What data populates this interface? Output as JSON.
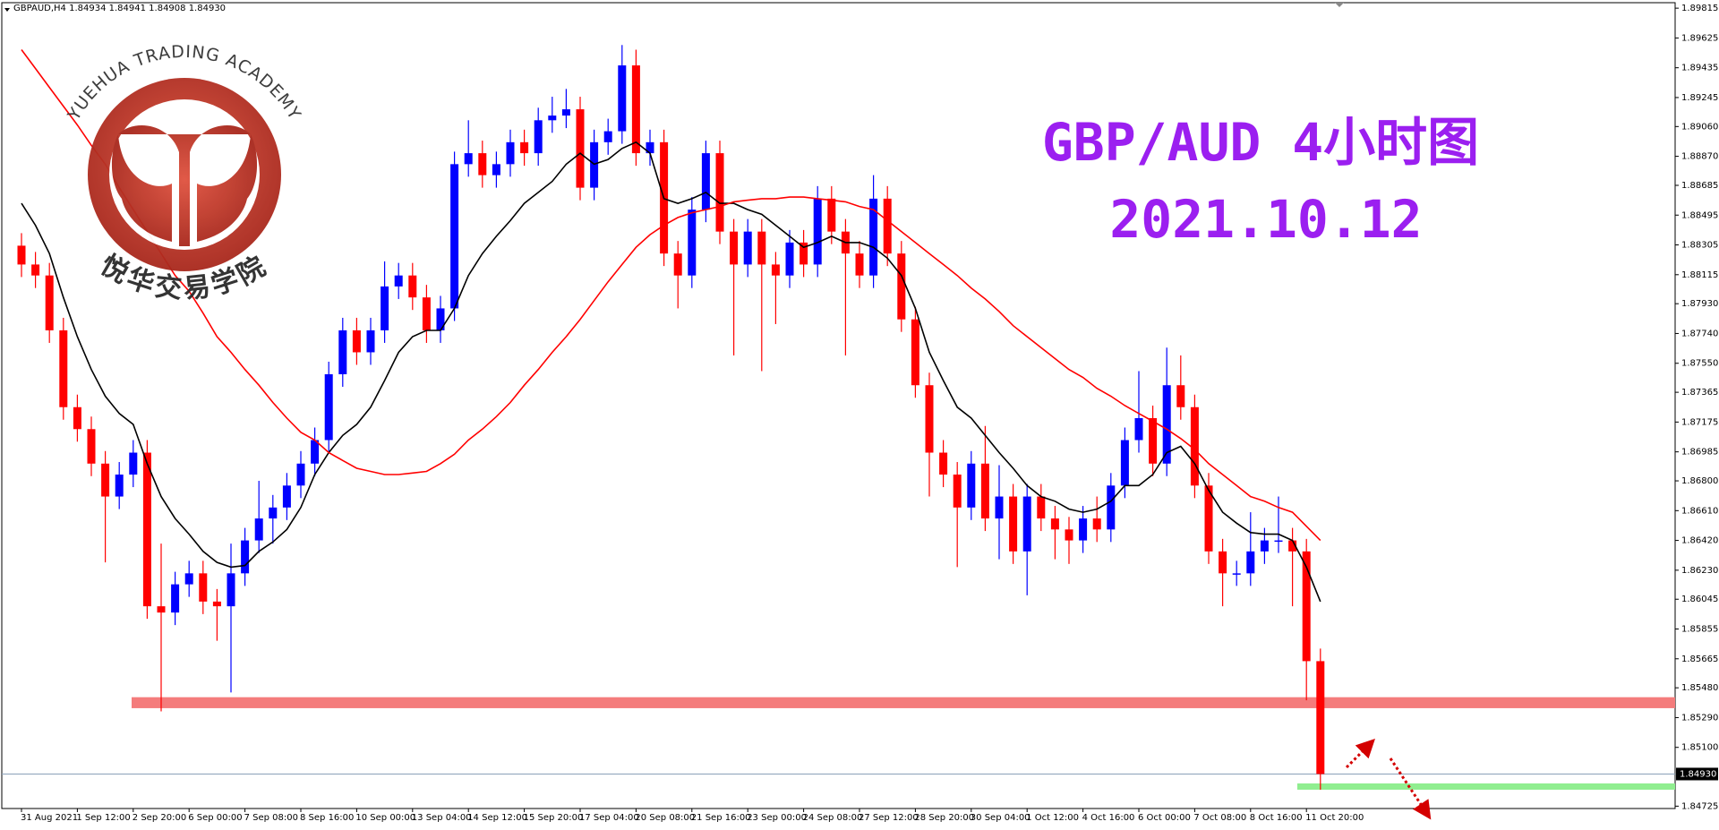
{
  "header": "GBPAUD,H4 1.84934 1.84941 1.84908 1.84930",
  "logo": {
    "text_en": "YUEHUA TRADING ACADEMY",
    "text_cn": "悦华交易学院"
  },
  "chart_data": {
    "type": "candlestick",
    "title": "GBP/AUD 4小时图",
    "subtitle": "2021.10.12",
    "categories": [
      "31 Aug 2021",
      null,
      null,
      null,
      "1 Sep 12:00",
      null,
      null,
      null,
      "2 Sep 20:00",
      null,
      null,
      null,
      "6 Sep 00:00",
      null,
      null,
      null,
      "7 Sep 08:00",
      null,
      null,
      null,
      "8 Sep 16:00",
      null,
      null,
      null,
      "10 Sep 00:00",
      null,
      null,
      null,
      "13 Sep 04:00",
      null,
      null,
      null,
      "14 Sep 12:00",
      null,
      null,
      null,
      "15 Sep 20:00",
      null,
      null,
      null,
      "17 Sep 04:00",
      null,
      null,
      null,
      "20 Sep 08:00",
      null,
      null,
      null,
      "21 Sep 16:00",
      null,
      null,
      null,
      "23 Sep 00:00",
      null,
      null,
      null,
      "24 Sep 08:00",
      null,
      null,
      null,
      "27 Sep 12:00",
      null,
      null,
      null,
      "28 Sep 20:00",
      null,
      null,
      null,
      "30 Sep 04:00",
      null,
      null,
      null,
      "1 Oct 12:00",
      null,
      null,
      null,
      "4 Oct 16:00",
      null,
      null,
      null,
      "6 Oct 00:00",
      null,
      null,
      null,
      "7 Oct 08:00",
      null,
      null,
      null,
      "8 Oct 16:00",
      null,
      null,
      null,
      "11 Oct 20:00",
      null
    ],
    "open": [
      1.883,
      1.8818,
      1.8811,
      1.8776,
      1.8727,
      1.8713,
      1.8691,
      1.867,
      1.8684,
      1.8698,
      1.86,
      1.8596,
      1.8614,
      1.8621,
      1.8603,
      1.86,
      1.8621,
      1.8642,
      1.8656,
      1.8663,
      1.8677,
      1.8691,
      1.8706,
      1.8748,
      1.8776,
      1.8762,
      1.8776,
      1.8804,
      1.8811,
      1.8797,
      1.8776,
      1.879,
      1.8882,
      1.8889,
      1.8875,
      1.8882,
      1.8896,
      1.8889,
      1.891,
      1.8913,
      1.8917,
      1.8867,
      1.8896,
      1.8903,
      1.8945,
      1.8889,
      1.8896,
      1.8825,
      1.8811,
      1.8853,
      1.8889,
      1.8839,
      1.8818,
      1.8839,
      1.8818,
      1.8811,
      1.8832,
      1.8818,
      1.886,
      1.8839,
      1.8825,
      1.8811,
      1.886,
      1.8825,
      1.8783,
      1.8741,
      1.8698,
      1.8684,
      1.8663,
      1.8691,
      1.8656,
      1.867,
      1.8635,
      1.867,
      1.8656,
      1.8649,
      1.8642,
      1.8656,
      1.8649,
      1.8677,
      1.8706,
      1.872,
      1.8691,
      1.8741,
      1.8727,
      1.8677,
      1.8635,
      1.8621,
      1.8621,
      1.8635,
      1.8642,
      1.8642,
      1.8635,
      1.8565
    ],
    "high": [
      1.8838,
      1.8826,
      1.8819,
      1.8784,
      1.8735,
      1.8721,
      1.8699,
      1.8692,
      1.8706,
      1.8706,
      1.864,
      1.8622,
      1.8629,
      1.8629,
      1.8611,
      1.864,
      1.865,
      1.868,
      1.8671,
      1.8685,
      1.8699,
      1.8714,
      1.8756,
      1.8784,
      1.8784,
      1.8784,
      1.882,
      1.8819,
      1.8819,
      1.8805,
      1.8798,
      1.889,
      1.891,
      1.8897,
      1.889,
      1.8904,
      1.8904,
      1.8918,
      1.8925,
      1.893,
      1.8925,
      1.8904,
      1.8911,
      1.8958,
      1.8955,
      1.8904,
      1.8904,
      1.8833,
      1.8861,
      1.8897,
      1.8897,
      1.8847,
      1.8847,
      1.8847,
      1.8826,
      1.884,
      1.884,
      1.8868,
      1.8868,
      1.8847,
      1.8833,
      1.8875,
      1.8868,
      1.8833,
      1.8791,
      1.8749,
      1.8706,
      1.8692,
      1.8699,
      1.8715,
      1.869,
      1.8678,
      1.8678,
      1.8678,
      1.8664,
      1.8657,
      1.8664,
      1.867,
      1.8685,
      1.8714,
      1.875,
      1.8728,
      1.8765,
      1.876,
      1.8735,
      1.8685,
      1.8643,
      1.8629,
      1.866,
      1.865,
      1.867,
      1.865,
      1.8643,
      1.8573
    ],
    "low": [
      1.881,
      1.8803,
      1.8768,
      1.8719,
      1.8705,
      1.8683,
      1.8628,
      1.8662,
      1.8676,
      1.8592,
      1.8533,
      1.8588,
      1.8606,
      1.8595,
      1.8578,
      1.8545,
      1.8613,
      1.8634,
      1.864,
      1.8655,
      1.8669,
      1.8683,
      1.8698,
      1.874,
      1.8754,
      1.8754,
      1.8768,
      1.8796,
      1.8789,
      1.8768,
      1.8768,
      1.8782,
      1.8874,
      1.8867,
      1.8867,
      1.8874,
      1.8881,
      1.8881,
      1.8902,
      1.8905,
      1.8859,
      1.8859,
      1.8888,
      1.8895,
      1.8881,
      1.8881,
      1.8817,
      1.879,
      1.8803,
      1.8845,
      1.8831,
      1.876,
      1.881,
      1.875,
      1.878,
      1.8803,
      1.881,
      1.881,
      1.8831,
      1.876,
      1.8803,
      1.8803,
      1.8817,
      1.8775,
      1.8733,
      1.867,
      1.8676,
      1.8625,
      1.8655,
      1.8648,
      1.863,
      1.8627,
      1.8607,
      1.8648,
      1.863,
      1.8627,
      1.8634,
      1.8641,
      1.8641,
      1.8669,
      1.8698,
      1.8683,
      1.8683,
      1.8719,
      1.8669,
      1.8627,
      1.86,
      1.8613,
      1.8613,
      1.8627,
      1.8634,
      1.86,
      1.854,
      1.8483
    ],
    "close": [
      1.8818,
      1.8811,
      1.8776,
      1.8727,
      1.8713,
      1.8691,
      1.867,
      1.8684,
      1.8698,
      1.86,
      1.8596,
      1.8614,
      1.8621,
      1.8603,
      1.86,
      1.8621,
      1.8642,
      1.8656,
      1.8663,
      1.8677,
      1.8691,
      1.8706,
      1.8748,
      1.8776,
      1.8762,
      1.8776,
      1.8804,
      1.8811,
      1.8797,
      1.8776,
      1.879,
      1.8882,
      1.8889,
      1.8875,
      1.8882,
      1.8896,
      1.8889,
      1.891,
      1.8913,
      1.8917,
      1.8867,
      1.8896,
      1.8903,
      1.8945,
      1.8889,
      1.8896,
      1.8825,
      1.8811,
      1.8853,
      1.8889,
      1.8839,
      1.8818,
      1.8839,
      1.8818,
      1.8811,
      1.8832,
      1.8818,
      1.886,
      1.8839,
      1.8825,
      1.8811,
      1.886,
      1.8825,
      1.8783,
      1.8741,
      1.8698,
      1.8684,
      1.8663,
      1.8691,
      1.8656,
      1.867,
      1.8635,
      1.867,
      1.8656,
      1.8649,
      1.8642,
      1.8656,
      1.8649,
      1.8677,
      1.8706,
      1.872,
      1.8691,
      1.8741,
      1.8727,
      1.8677,
      1.8635,
      1.8621,
      1.8621,
      1.8635,
      1.8642,
      1.8642,
      1.8635,
      1.8565,
      1.8493
    ],
    "up_color": "#0000ff",
    "down_color": "#ff0000",
    "series": [
      {
        "color": "#000000",
        "values": [
          1.8857,
          1.8843,
          1.8825,
          1.8797,
          1.8772,
          1.8751,
          1.8734,
          1.8723,
          1.8716,
          1.8691,
          1.867,
          1.8656,
          1.8646,
          1.8635,
          1.8628,
          1.8625,
          1.8626,
          1.8635,
          1.8641,
          1.8649,
          1.8663,
          1.8684,
          1.8698,
          1.8709,
          1.8716,
          1.8727,
          1.8744,
          1.8762,
          1.8772,
          1.8776,
          1.8776,
          1.879,
          1.8811,
          1.8825,
          1.8836,
          1.8846,
          1.8857,
          1.8864,
          1.8871,
          1.8882,
          1.8889,
          1.8882,
          1.8885,
          1.8892,
          1.8896,
          1.8889,
          1.886,
          1.8857,
          1.886,
          1.8864,
          1.8857,
          1.8857,
          1.8853,
          1.885,
          1.8843,
          1.8836,
          1.8829,
          1.8832,
          1.8836,
          1.8832,
          1.8832,
          1.8829,
          1.8822,
          1.8811,
          1.879,
          1.8762,
          1.8744,
          1.8727,
          1.872,
          1.8709,
          1.8698,
          1.8688,
          1.8677,
          1.867,
          1.8667,
          1.8662,
          1.866,
          1.8662,
          1.8667,
          1.8677,
          1.8677,
          1.8684,
          1.8698,
          1.8702,
          1.8691,
          1.8674,
          1.866,
          1.8653,
          1.8647,
          1.8646,
          1.8646,
          1.8642,
          1.8625,
          1.8603
        ]
      },
      {
        "color": "#ff0000",
        "values": [
          1.8955,
          1.8943,
          1.8931,
          1.8919,
          1.8907,
          1.8894,
          1.8882,
          1.8867,
          1.8853,
          1.8839,
          1.8825,
          1.8811,
          1.8801,
          1.8787,
          1.8772,
          1.8762,
          1.8751,
          1.8741,
          1.873,
          1.872,
          1.8711,
          1.8706,
          1.8698,
          1.8693,
          1.8688,
          1.8686,
          1.8684,
          1.8684,
          1.8685,
          1.8686,
          1.8691,
          1.8697,
          1.8706,
          1.8713,
          1.8721,
          1.873,
          1.8741,
          1.8751,
          1.8762,
          1.8772,
          1.8783,
          1.8795,
          1.8807,
          1.8818,
          1.8829,
          1.8837,
          1.8843,
          1.8848,
          1.8851,
          1.8853,
          1.8855,
          1.8858,
          1.8859,
          1.886,
          1.886,
          1.8861,
          1.8861,
          1.886,
          1.8859,
          1.8858,
          1.8855,
          1.8853,
          1.8846,
          1.8839,
          1.8832,
          1.8825,
          1.8818,
          1.8811,
          1.8803,
          1.8796,
          1.8788,
          1.8779,
          1.8772,
          1.8765,
          1.8758,
          1.8751,
          1.8746,
          1.8739,
          1.8734,
          1.8728,
          1.8723,
          1.8718,
          1.8713,
          1.8707,
          1.87,
          1.8691,
          1.8684,
          1.8677,
          1.867,
          1.8667,
          1.8663,
          1.866,
          1.8651,
          1.8642
        ]
      }
    ],
    "ylim": [
      1.8471,
      1.8985
    ],
    "yticks": [
      1.89815,
      1.89625,
      1.89435,
      1.89245,
      {
        "value": 1.8906,
        "label": "1.89060"
      },
      {
        "value": 1.8887,
        "label": "1.88870"
      },
      1.88685,
      1.88495,
      1.88305,
      1.88115,
      {
        "value": 1.8793,
        "label": "1.87930"
      },
      {
        "value": 1.8774,
        "label": "1.87740"
      },
      {
        "value": 1.8755,
        "label": "1.87550"
      },
      1.87365,
      1.87175,
      1.86985,
      {
        "value": 1.868,
        "label": "1.86800"
      },
      {
        "value": 1.8661,
        "label": "1.86610"
      },
      {
        "value": 1.8642,
        "label": "1.86420"
      },
      {
        "value": 1.8623,
        "label": "1.86230"
      },
      1.86045,
      1.85855,
      1.85665,
      {
        "value": 1.8548,
        "label": "1.85480"
      },
      {
        "value": 1.8529,
        "label": "1.85290"
      },
      {
        "value": 1.851,
        "label": "1.85100"
      },
      1.84725
    ],
    "price_line": {
      "value": 1.8493,
      "label": "1.84930"
    },
    "zones": [
      {
        "color": "#f47c7c",
        "range": [
          1.8535,
          1.8542
        ]
      },
      {
        "color": "#90ee90",
        "range": [
          1.8483,
          1.8487
        ]
      }
    ]
  }
}
